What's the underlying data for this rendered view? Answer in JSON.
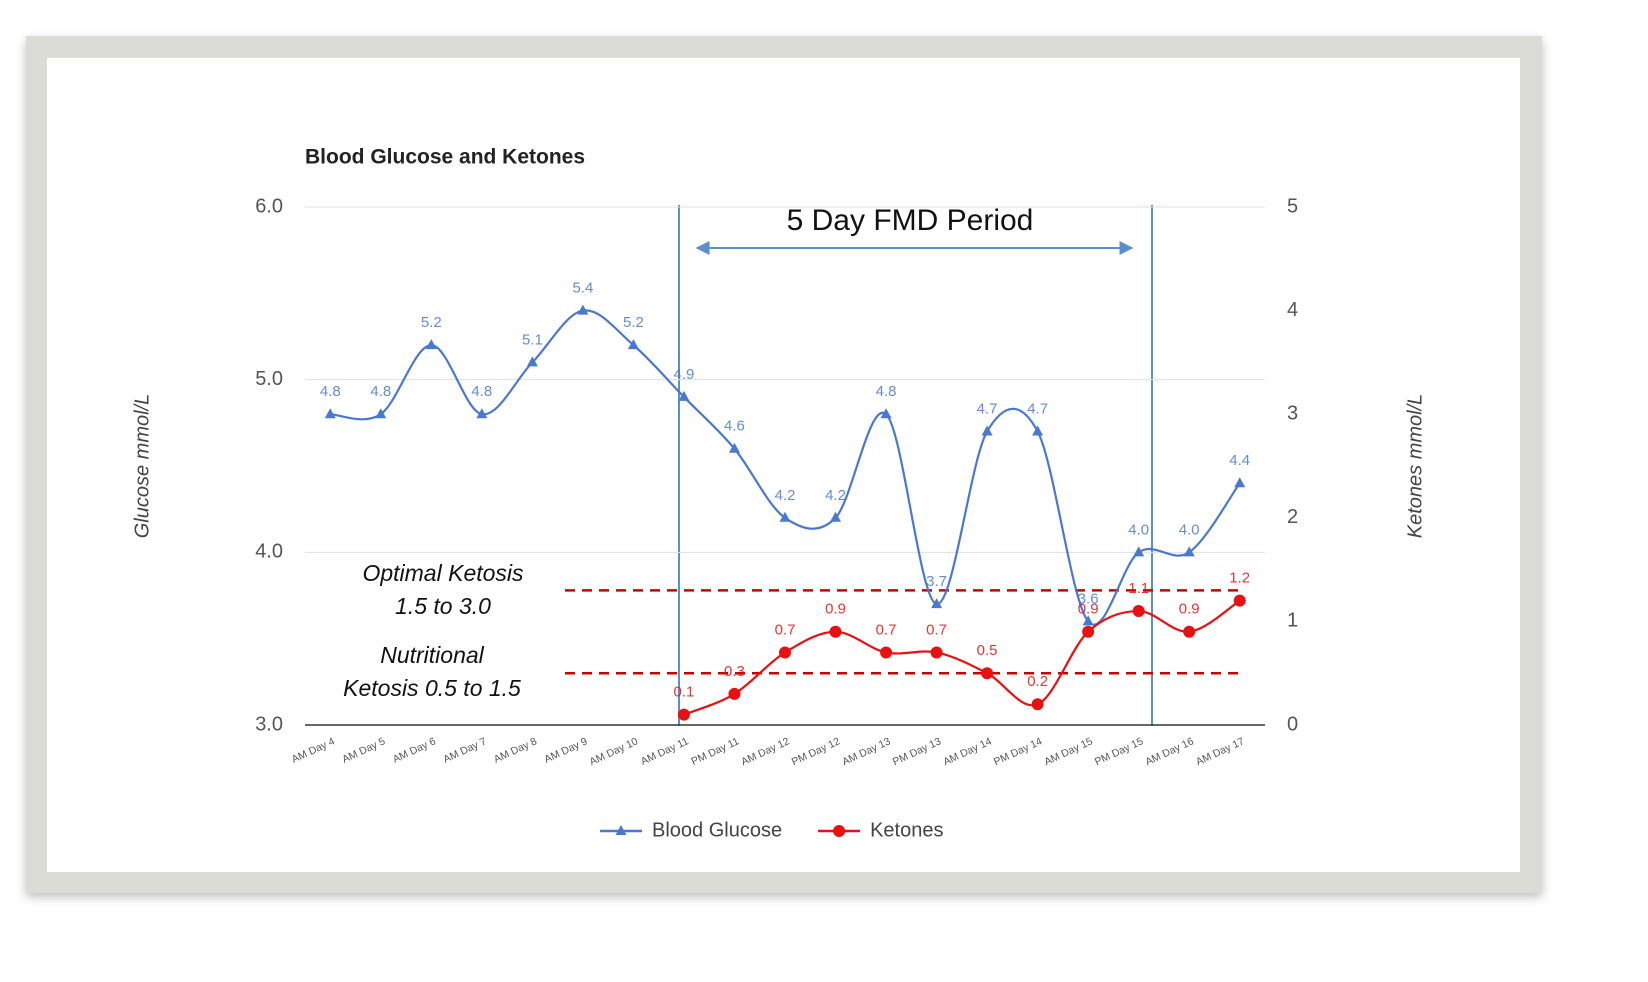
{
  "chart_data": {
    "type": "line",
    "title": "Blood Glucose and Ketones",
    "categories": [
      "AM Day 4",
      "AM Day 5",
      "AM Day 6",
      "AM Day 7",
      "AM Day 8",
      "AM Day 9",
      "AM Day 10",
      "AM Day 11",
      "PM Day 11",
      "AM Day 12",
      "PM Day 12",
      "AM Day 13",
      "PM Day 13",
      "AM Day 14",
      "PM Day 14",
      "AM Day 15",
      "PM Day 15",
      "AM Day 16",
      "AM Day 17"
    ],
    "series": [
      {
        "name": "Blood Glucose",
        "color": "#4a78d0",
        "marker": "triangle",
        "values": [
          4.8,
          4.8,
          5.2,
          4.8,
          5.1,
          5.4,
          5.2,
          4.9,
          4.6,
          4.2,
          4.2,
          4.8,
          3.7,
          4.7,
          4.7,
          3.6,
          4.0,
          4.0,
          4.4
        ],
        "value_labels": [
          "4.8",
          "4.8",
          "5.2",
          "4.8",
          "5.1",
          "5.4",
          "5.2",
          "4.9",
          "4.6",
          "4.2",
          "4.2",
          "4.8",
          "3.7",
          "4.7",
          "4.7",
          "3.6",
          "4.0",
          "4.0",
          "4.4"
        ]
      },
      {
        "name": "Ketones",
        "color": "#e81010",
        "marker": "circle",
        "axis": "y2",
        "values": [
          null,
          null,
          null,
          null,
          null,
          null,
          null,
          0.1,
          0.3,
          0.7,
          0.9,
          0.7,
          0.7,
          0.5,
          0.2,
          0.9,
          1.1,
          0.9,
          1.2
        ]
      }
    ],
    "y_label": "Glucose mmol/L",
    "y2_label": "Ketones mmol/L",
    "ylim": [
      3,
      6
    ],
    "yticks": [
      {
        "value": 3,
        "label": "3.0"
      },
      {
        "value": 4,
        "label": "4.0"
      },
      {
        "value": 5,
        "label": "5.0"
      },
      {
        "value": 6,
        "label": "6.0"
      }
    ],
    "y2lim": [
      0,
      5
    ],
    "y2ticks": [
      0,
      1,
      2,
      3,
      4,
      5
    ],
    "grid": true,
    "legend": "bottom",
    "reference_lines": [
      {
        "value": 1.3,
        "axis": "y2",
        "color": "#cc0000"
      },
      {
        "value": 0.5,
        "axis": "y2",
        "color": "#cc0000"
      }
    ],
    "annotations": {
      "period": "5 Day FMD Period",
      "optimal_1": "Optimal Ketosis",
      "optimal_2": "1.5 to 3.0",
      "nutritional_1": "Nutritional",
      "nutritional_2": "Ketosis 0.5 to 1.5"
    }
  }
}
